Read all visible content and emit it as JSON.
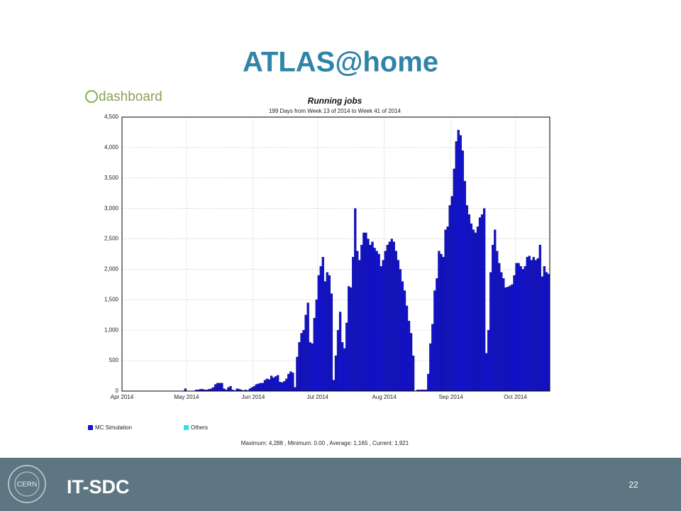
{
  "slide": {
    "title": "ATLAS@home",
    "logo_text": "dashboard",
    "footer_text": "IT-SDC",
    "cern_logo_text": "CERN",
    "page_number": "22"
  },
  "chart_data": {
    "type": "bar",
    "title": "Running jobs",
    "subtitle": "199 Days from Week 13 of 2014 to Week 41 of 2014",
    "x": [
      0,
      1,
      2,
      3,
      4,
      5,
      6,
      7,
      8,
      9,
      10,
      11,
      12,
      13,
      14,
      15,
      16,
      17,
      18,
      19,
      20,
      21,
      22,
      23,
      24,
      25,
      26,
      27,
      28,
      29,
      30,
      31,
      32,
      33,
      34,
      35,
      36,
      37,
      38,
      39,
      40,
      41,
      42,
      43,
      44,
      45,
      46,
      47,
      48,
      49,
      50,
      51,
      52,
      53,
      54,
      55,
      56,
      57,
      58,
      59,
      60,
      61,
      62,
      63,
      64,
      65,
      66,
      67,
      68,
      69,
      70,
      71,
      72,
      73,
      74,
      75,
      76,
      77,
      78,
      79,
      80,
      81,
      82,
      83,
      84,
      85,
      86,
      87,
      88,
      89,
      90,
      91,
      92,
      93,
      94,
      95,
      96,
      97,
      98,
      99,
      100,
      101,
      102,
      103,
      104,
      105,
      106,
      107,
      108,
      109,
      110,
      111,
      112,
      113,
      114,
      115,
      116,
      117,
      118,
      119,
      120,
      121,
      122,
      123,
      124,
      125,
      126,
      127,
      128,
      129,
      130,
      131,
      132,
      133,
      134,
      135,
      136,
      137,
      138,
      139,
      140,
      141,
      142,
      143,
      144,
      145,
      146,
      147,
      148,
      149,
      150,
      151,
      152,
      153,
      154,
      155,
      156,
      157,
      158,
      159,
      160,
      161,
      162,
      163,
      164,
      165,
      166,
      167,
      168,
      169,
      170,
      171,
      172,
      173,
      174,
      175,
      176,
      177,
      178,
      179,
      180,
      181,
      182,
      183,
      184,
      185,
      186,
      187,
      188,
      189,
      190,
      191,
      192,
      193,
      194,
      195,
      196,
      197,
      198
    ],
    "series": [
      {
        "name": "MC Simulation",
        "color": "#1414c8",
        "values": [
          0,
          0,
          0,
          0,
          0,
          0,
          0,
          0,
          0,
          0,
          0,
          0,
          0,
          0,
          0,
          0,
          0,
          0,
          0,
          0,
          0,
          0,
          0,
          0,
          0,
          0,
          0,
          0,
          0,
          40,
          0,
          0,
          0,
          0,
          20,
          20,
          30,
          30,
          20,
          20,
          30,
          40,
          60,
          110,
          130,
          130,
          130,
          40,
          20,
          60,
          80,
          20,
          10,
          40,
          30,
          20,
          10,
          20,
          10,
          40,
          60,
          80,
          110,
          120,
          130,
          130,
          180,
          200,
          190,
          250,
          220,
          240,
          260,
          150,
          140,
          160,
          200,
          280,
          320,
          300,
          60,
          560,
          800,
          950,
          1000,
          1250,
          1450,
          800,
          780,
          1200,
          1500,
          1900,
          2050,
          2200,
          1800,
          1950,
          1900,
          1600,
          180,
          580,
          1000,
          1300,
          800,
          700,
          1120,
          1720,
          1700,
          2200,
          3000,
          2300,
          2150,
          2400,
          2600,
          2600,
          2500,
          2400,
          2450,
          2350,
          2300,
          2250,
          2050,
          2150,
          2300,
          2400,
          2450,
          2500,
          2450,
          2300,
          2150,
          2000,
          1800,
          1650,
          1400,
          1150,
          950,
          580,
          0,
          20,
          20,
          20,
          20,
          20,
          280,
          780,
          1100,
          1650,
          1850,
          2300,
          2250,
          2200,
          2650,
          2700,
          3050,
          3200,
          3650,
          4100,
          4288,
          4200,
          3950,
          3450,
          3050,
          2900,
          2750,
          2650,
          2600,
          2700,
          2850,
          2900,
          3000,
          620,
          1000,
          1950,
          2400,
          2650,
          2300,
          2100,
          1950,
          1850,
          1700,
          1710,
          1730,
          1750,
          1900,
          2100,
          2100,
          2050,
          2000,
          2050,
          2200,
          2220,
          2150,
          2200,
          2150,
          2180,
          2400,
          1880,
          2050,
          1950,
          1921
        ]
      }
    ],
    "other_legend_entries": [
      {
        "name": "Others",
        "color": "#33e0e8"
      }
    ],
    "xlim": [
      0,
      199
    ],
    "xticks": [
      {
        "value": 0,
        "label": "Apr 2014"
      },
      {
        "value": 30,
        "label": "May 2014"
      },
      {
        "value": 61,
        "label": "Jun 2014"
      },
      {
        "value": 91,
        "label": "Jul 2014"
      },
      {
        "value": 122,
        "label": "Aug 2014"
      },
      {
        "value": 153,
        "label": "Sep 2014"
      },
      {
        "value": 183,
        "label": "Oct 2014"
      }
    ],
    "ylim": [
      0,
      4500
    ],
    "yticks": [
      0,
      500,
      {
        "value": 1000,
        "label": "1,000"
      },
      {
        "value": 1500,
        "label": "1,500"
      },
      {
        "value": 2000,
        "label": "2,000"
      },
      {
        "value": 2500,
        "label": "2,500"
      },
      {
        "value": 3000,
        "label": "3,000"
      },
      {
        "value": 3500,
        "label": "3,500"
      },
      {
        "value": 4000,
        "label": "4,000"
      },
      {
        "value": 4500,
        "label": "4,500"
      }
    ],
    "grid": true,
    "stats": "Maximum: 4,288 , Minimum: 0.00 , Average: 1,165 , Current: 1,921"
  }
}
